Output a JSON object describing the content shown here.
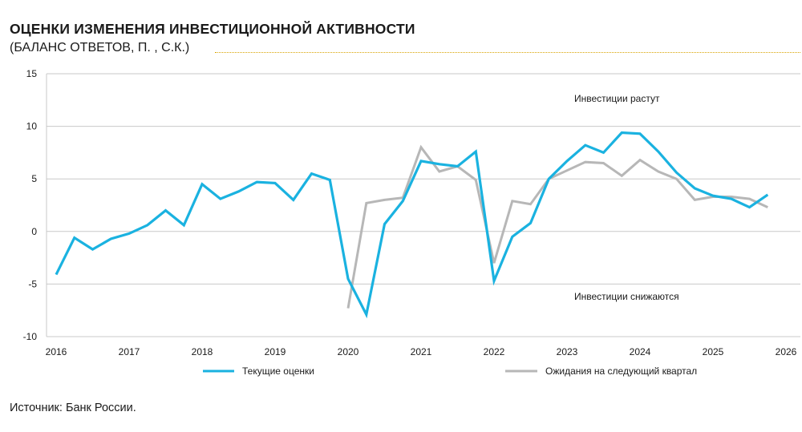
{
  "title": "ОЦЕНКИ ИЗМЕНЕНИЯ ИНВЕСТИЦИОННОЙ АКТИВНОСТИ",
  "subtitle": "(БАЛАНС ОТВЕТОВ, П. , С.К.)",
  "source": "Источник: Банк России.",
  "colors": {
    "current": "#1ab2e0",
    "expected": "#b7b7b7",
    "accent_rule": "#d9a400"
  },
  "chart_data": {
    "type": "line",
    "title": "ОЦЕНКИ ИЗМЕНЕНИЯ ИНВЕСТИЦИОННОЙ АКТИВНОСТИ",
    "subtitle": "(БАЛАНС ОТВЕТОВ, П. , С.К.)",
    "xlabel": "",
    "ylabel": "",
    "xlim": [
      2016,
      2026
    ],
    "ylim": [
      -10,
      15
    ],
    "x_ticks": [
      "2016",
      "2017",
      "2018",
      "2019",
      "2020",
      "2021",
      "2022",
      "2023",
      "2024",
      "2025",
      "2026"
    ],
    "y_ticks": [
      "15",
      "10",
      "5",
      "0",
      "-5",
      "-10"
    ],
    "grid": "horizontal",
    "legend_position": "bottom",
    "annotations": [
      "Инвестиции растут",
      "Инвестиции снижаются"
    ],
    "series": [
      {
        "name": "Текущие оценки",
        "x": [
          2016.0,
          2016.25,
          2016.5,
          2016.75,
          2017.0,
          2017.25,
          2017.5,
          2017.75,
          2018.0,
          2018.25,
          2018.5,
          2018.75,
          2019.0,
          2019.25,
          2019.5,
          2019.75,
          2020.0,
          2020.25,
          2020.5,
          2020.75,
          2021.0,
          2021.25,
          2021.5,
          2021.75,
          2022.0,
          2022.25,
          2022.5,
          2022.75,
          2023.0,
          2023.25,
          2023.5,
          2023.75,
          2024.0,
          2024.25,
          2024.5,
          2024.75,
          2025.0,
          2025.25,
          2025.5,
          2025.75
        ],
        "values": [
          -4.1,
          -0.6,
          -1.7,
          -0.7,
          -0.2,
          0.6,
          2.0,
          0.6,
          4.5,
          3.1,
          3.8,
          4.7,
          4.6,
          3.0,
          5.5,
          4.9,
          -4.5,
          -7.9,
          0.7,
          2.9,
          6.7,
          6.4,
          6.2,
          7.6,
          -4.7,
          -0.5,
          0.8,
          5.0,
          6.7,
          8.2,
          7.5,
          9.4,
          9.3,
          7.6,
          5.6,
          4.1,
          3.4,
          3.1,
          2.3,
          3.5
        ]
      },
      {
        "name": "Ожидания на следующий квартал",
        "x": [
          2020.0,
          2020.25,
          2020.5,
          2020.75,
          2021.0,
          2021.25,
          2021.5,
          2021.75,
          2022.0,
          2022.25,
          2022.5,
          2022.75,
          2023.0,
          2023.25,
          2023.5,
          2023.75,
          2024.0,
          2024.25,
          2024.5,
          2024.75,
          2025.0,
          2025.25,
          2025.5,
          2025.75
        ],
        "values": [
          -7.3,
          2.7,
          3.0,
          3.2,
          8.0,
          5.7,
          6.2,
          4.9,
          -3.0,
          2.9,
          2.6,
          5.0,
          5.8,
          6.6,
          6.5,
          5.3,
          6.8,
          5.7,
          5.0,
          3.0,
          3.3,
          3.3,
          3.1,
          2.3
        ]
      }
    ]
  }
}
